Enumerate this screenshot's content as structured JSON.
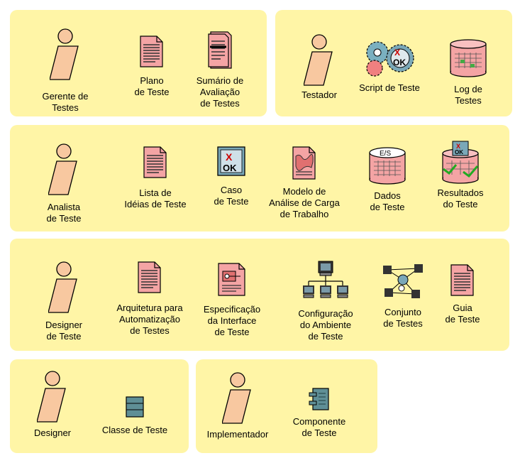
{
  "panels": {
    "gerente": {
      "items": [
        {
          "label": "Gerente de\nTestes",
          "icon": "actor-icon"
        },
        {
          "label": "Plano\nde Teste",
          "icon": "document-icon"
        },
        {
          "label": "Sumário de\nAvaliação\nde Testes",
          "icon": "summary-document-icon"
        }
      ]
    },
    "testador": {
      "items": [
        {
          "label": "Testador",
          "icon": "actor-icon"
        },
        {
          "label": "Script de Teste",
          "icon": "gears-ok-icon"
        },
        {
          "label": "Log de\nTestes",
          "icon": "database-log-icon"
        }
      ]
    },
    "analista": {
      "items": [
        {
          "label": "Analista\nde Teste",
          "icon": "actor-icon"
        },
        {
          "label": "Lista de\nIdéias de Teste",
          "icon": "document-icon"
        },
        {
          "label": "Caso\nde Teste",
          "icon": "test-case-icon"
        },
        {
          "label": "Modelo de\nAnálise de Carga\nde Trabalho",
          "icon": "map-document-icon"
        },
        {
          "label": "Dados\nde Teste",
          "icon": "database-es-icon"
        },
        {
          "label": "Resultados\ndo Teste",
          "icon": "database-results-icon"
        }
      ]
    },
    "designer_teste": {
      "items": [
        {
          "label": "Designer\nde Teste",
          "icon": "actor-icon"
        },
        {
          "label": "Arquitetura para\nAutomatização\nde Testes",
          "icon": "document-icon"
        },
        {
          "label": "Especificação\nda Interface\nde Teste",
          "icon": "interface-spec-icon"
        },
        {
          "label": "Configuração\ndo Ambiente\nde Teste",
          "icon": "network-icon"
        },
        {
          "label": "Conjunto\nde Testes",
          "icon": "test-suite-icon"
        },
        {
          "label": "Guia\nde Teste",
          "icon": "document-icon"
        }
      ]
    },
    "designer": {
      "items": [
        {
          "label": "Designer",
          "icon": "actor-icon"
        },
        {
          "label": "Classe de Teste",
          "icon": "class-icon"
        }
      ]
    },
    "implementador": {
      "items": [
        {
          "label": "Implementador",
          "icon": "actor-icon"
        },
        {
          "label": "Componente\nde Teste",
          "icon": "component-icon"
        }
      ]
    }
  },
  "colors": {
    "panel": "#fff5a6",
    "actor_body": "#f8c8a0",
    "document": "#f4a4a4",
    "text_dark": "#000000"
  }
}
